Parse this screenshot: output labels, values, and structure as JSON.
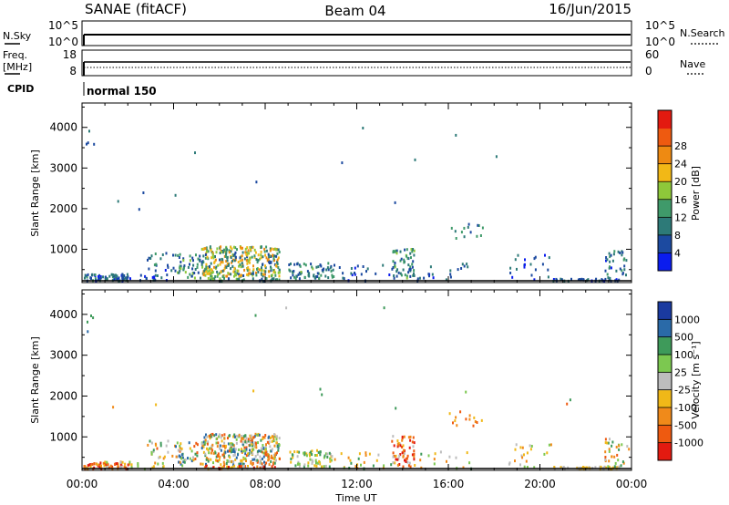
{
  "header": {
    "station": "SANAE (fitACF)",
    "beam": "Beam 04",
    "date": "16/Jun/2015"
  },
  "top_panels": {
    "nsky_label": "N.Sky",
    "nsky_ticks": [
      "10^5",
      "10^0"
    ],
    "nsearch_label": "N.Search",
    "nsearch_ticks": [
      "10^5",
      "10^0"
    ],
    "freq_label": "Freq.",
    "freq_unit": "[MHz]",
    "freq_ticks": [
      "18",
      "8"
    ],
    "nave_label": "Nave",
    "nave_ticks": [
      "60",
      "0"
    ],
    "cpid_label": "CPID",
    "cpid_value": "normal 150"
  },
  "colors": {
    "power": [
      "#0a1cee",
      "#1c4aa0",
      "#2d7a78",
      "#3f9a6a",
      "#8ec83a",
      "#f2b816",
      "#ee8a12",
      "#ee5a10",
      "#e31a10"
    ],
    "velocity": [
      "#e31a10",
      "#ee5a10",
      "#f08a1a",
      "#f0b818",
      "#bdbdbd",
      "#7cc850",
      "#3e9a5a",
      "#2a6aa8",
      "#1a3aa0"
    ]
  },
  "chart_data": [
    {
      "type": "heatmap",
      "parameter": "Power",
      "ylabel": "Slant Range [km]",
      "ylim": [
        180,
        4600
      ],
      "yticks": [
        1000,
        2000,
        3000,
        4000
      ],
      "xlim_hours": [
        0,
        24
      ],
      "colorbar_label": "Power [dB]",
      "colorbar_ticks": [
        "4",
        "8",
        "12",
        "16",
        "20",
        "24",
        "28"
      ],
      "colorbar_range": [
        0,
        32
      ],
      "scatter_regions": [
        {
          "t": [
            0.0,
            2.0
          ],
          "r": [
            190,
            420
          ],
          "n": 90,
          "v": [
            0.6,
            3.4
          ]
        },
        {
          "t": [
            0.0,
            0.5
          ],
          "r": [
            3600,
            4000
          ],
          "n": 5,
          "v": [
            1,
            3
          ]
        },
        {
          "t": [
            1.0,
            3.8
          ],
          "r": [
            210,
            420
          ],
          "n": 30,
          "v": [
            0.5,
            3
          ]
        },
        {
          "t": [
            2.8,
            4.3
          ],
          "r": [
            500,
            950
          ],
          "n": 25,
          "v": [
            0.8,
            3.5
          ]
        },
        {
          "t": [
            4.0,
            5.3
          ],
          "r": [
            320,
            900
          ],
          "n": 45,
          "v": [
            1,
            4.5
          ]
        },
        {
          "t": [
            5.2,
            8.6
          ],
          "r": [
            350,
            1100
          ],
          "n": 340,
          "v": [
            1.5,
            7
          ]
        },
        {
          "t": [
            5.3,
            8.6
          ],
          "r": [
            190,
            320
          ],
          "n": 70,
          "v": [
            1,
            4.5
          ]
        },
        {
          "t": [
            9.0,
            11.0
          ],
          "r": [
            300,
            700
          ],
          "n": 70,
          "v": [
            1,
            4.2
          ]
        },
        {
          "t": [
            11.0,
            13.5
          ],
          "r": [
            200,
            650
          ],
          "n": 25,
          "v": [
            0.5,
            3
          ]
        },
        {
          "t": [
            13.5,
            14.5
          ],
          "r": [
            300,
            1050
          ],
          "n": 60,
          "v": [
            1,
            4.5
          ]
        },
        {
          "t": [
            14.5,
            17.0
          ],
          "r": [
            180,
            700
          ],
          "n": 20,
          "v": [
            0.5,
            3
          ]
        },
        {
          "t": [
            16.0,
            17.5
          ],
          "r": [
            1300,
            1650
          ],
          "n": 14,
          "v": [
            1,
            4
          ]
        },
        {
          "t": [
            18.5,
            20.5
          ],
          "r": [
            190,
            900
          ],
          "n": 25,
          "v": [
            0.5,
            3
          ]
        },
        {
          "t": [
            20.5,
            23.5
          ],
          "r": [
            180,
            300
          ],
          "n": 90,
          "v": [
            0.4,
            2.5
          ]
        },
        {
          "t": [
            22.8,
            24.0
          ],
          "r": [
            300,
            1000
          ],
          "n": 35,
          "v": [
            0.8,
            4
          ]
        },
        {
          "t": [
            1.0,
            22.0
          ],
          "r": [
            1400,
            4400
          ],
          "n": 12,
          "v": [
            1,
            3
          ]
        }
      ]
    },
    {
      "type": "heatmap",
      "parameter": "Velocity",
      "ylabel": "Slant Range [km]",
      "ylim": [
        180,
        4600
      ],
      "yticks": [
        1000,
        2000,
        3000,
        4000
      ],
      "xlim_hours": [
        0,
        24
      ],
      "xlabel": "Time UT",
      "xticks": [
        "00:00",
        "04:00",
        "08:00",
        "12:00",
        "16:00",
        "20:00",
        "00:00"
      ],
      "colorbar_label": "Velocity [m s⁻¹]",
      "colorbar_ticks": [
        "-1000",
        "-500",
        "-100",
        "-25",
        "25",
        "100",
        "500",
        "1000"
      ],
      "scatter_regions": [
        {
          "t": [
            0.0,
            2.0
          ],
          "r": [
            190,
            420
          ],
          "n": 90,
          "v": [
            0,
            4
          ]
        },
        {
          "t": [
            0.0,
            0.5
          ],
          "r": [
            3600,
            4000
          ],
          "n": 5,
          "v": [
            6,
            8
          ]
        },
        {
          "t": [
            1.0,
            3.8
          ],
          "r": [
            210,
            420
          ],
          "n": 30,
          "v": [
            2,
            6
          ]
        },
        {
          "t": [
            2.8,
            4.3
          ],
          "r": [
            500,
            950
          ],
          "n": 25,
          "v": [
            1,
            7
          ]
        },
        {
          "t": [
            4.0,
            5.3
          ],
          "r": [
            320,
            900
          ],
          "n": 45,
          "v": [
            1,
            8
          ]
        },
        {
          "t": [
            5.2,
            8.6
          ],
          "r": [
            350,
            1100
          ],
          "n": 340,
          "v": [
            1,
            8
          ]
        },
        {
          "t": [
            5.3,
            8.6
          ],
          "r": [
            190,
            320
          ],
          "n": 70,
          "v": [
            0,
            5
          ]
        },
        {
          "t": [
            9.0,
            11.0
          ],
          "r": [
            300,
            700
          ],
          "n": 70,
          "v": [
            3,
            7
          ]
        },
        {
          "t": [
            11.0,
            13.5
          ],
          "r": [
            200,
            650
          ],
          "n": 25,
          "v": [
            2,
            7
          ]
        },
        {
          "t": [
            13.5,
            14.5
          ],
          "r": [
            300,
            1050
          ],
          "n": 60,
          "v": [
            0,
            5
          ]
        },
        {
          "t": [
            14.5,
            17.0
          ],
          "r": [
            180,
            700
          ],
          "n": 20,
          "v": [
            2,
            7
          ]
        },
        {
          "t": [
            16.0,
            17.5
          ],
          "r": [
            1300,
            1650
          ],
          "n": 14,
          "v": [
            0,
            4
          ]
        },
        {
          "t": [
            18.5,
            20.5
          ],
          "r": [
            190,
            900
          ],
          "n": 25,
          "v": [
            2,
            6
          ]
        },
        {
          "t": [
            20.5,
            23.5
          ],
          "r": [
            180,
            300
          ],
          "n": 90,
          "v": [
            3,
            5
          ]
        },
        {
          "t": [
            22.8,
            24.0
          ],
          "r": [
            300,
            1000
          ],
          "n": 35,
          "v": [
            1,
            7
          ]
        },
        {
          "t": [
            1.0,
            22.0
          ],
          "r": [
            1400,
            4400
          ],
          "n": 12,
          "v": [
            1,
            7
          ]
        }
      ]
    }
  ]
}
